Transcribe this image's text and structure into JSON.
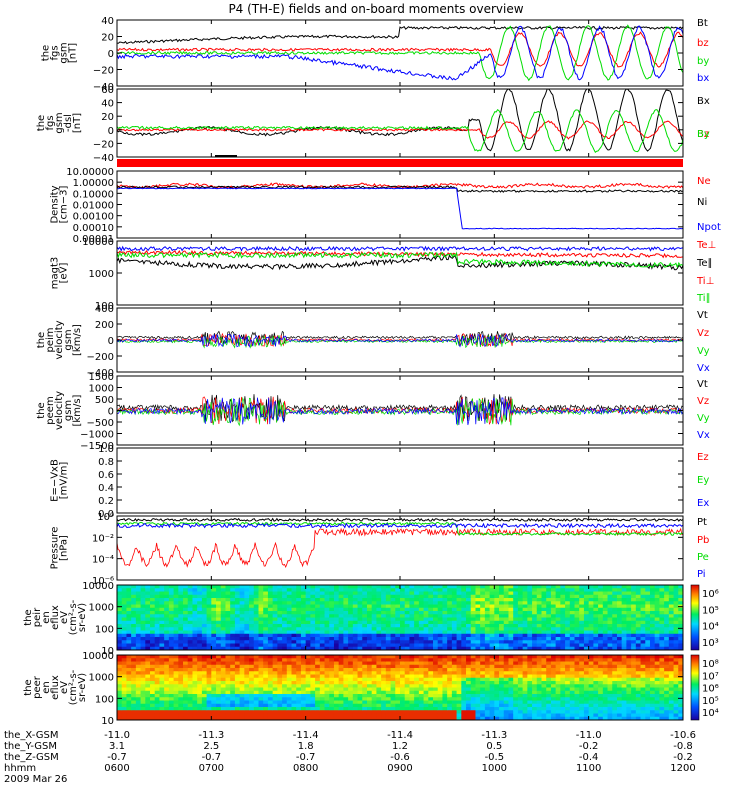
{
  "title": "P4 (TH-E) fields and on-board moments overview",
  "colors": {
    "black": "#000000",
    "red": "#ff0000",
    "green": "#00dd00",
    "blue": "#0000ff",
    "band": "#ff0000"
  },
  "footer": {
    "rows": [
      {
        "label": "the_X-GSM",
        "values": [
          "-11.0",
          "-11.3",
          "-11.4",
          "-11.4",
          "-11.3",
          "-11.0",
          "-10.6"
        ]
      },
      {
        "label": "the_Y-GSM",
        "values": [
          "3.1",
          "2.5",
          "1.8",
          "1.2",
          "0.5",
          "-0.2",
          "-0.8"
        ]
      },
      {
        "label": "the_Z-GSM",
        "values": [
          "-0.7",
          "-0.7",
          "-0.7",
          "-0.6",
          "-0.5",
          "-0.4",
          "-0.2"
        ]
      },
      {
        "label": "hhmm",
        "values": [
          "0600",
          "0700",
          "0800",
          "0900",
          "1000",
          "1100",
          "1200"
        ]
      }
    ],
    "date": "2009 Mar 26"
  },
  "chart_data": [
    {
      "type": "line",
      "id": "fgs_gsm",
      "ylabel": [
        "the",
        "fgs",
        "gsm",
        "[nT]"
      ],
      "ylim": [
        -40,
        40
      ],
      "ytick_labels": [
        "40",
        "20",
        "0",
        "−20",
        "−40"
      ],
      "series": [
        {
          "name": "Bt",
          "color": "black"
        },
        {
          "name": "bz",
          "color": "red"
        },
        {
          "name": "by",
          "color": "green"
        },
        {
          "name": "bx",
          "color": "blue"
        }
      ]
    },
    {
      "type": "line",
      "id": "fgs_dsl",
      "ylabel": [
        "the",
        "fgs",
        "gsm",
        "-dsl",
        "[nT]"
      ],
      "ylim": [
        -40,
        60
      ],
      "ytick_labels": [
        "60",
        "40",
        "20",
        "0",
        "−20",
        "−40"
      ],
      "series": [
        {
          "name": "Bx",
          "color": "black"
        },
        {
          "name": "Bz",
          "color": "red"
        },
        {
          "name": "By",
          "color": "green"
        }
      ]
    },
    {
      "type": "line",
      "id": "density",
      "ylabel": [
        "Density",
        "[cm−3]"
      ],
      "log": true,
      "ytick_labels": [
        "10.00000",
        "1.00000",
        "0.10000",
        "0.01000",
        "0.00100",
        "0.00010",
        "0.00001"
      ],
      "series": [
        {
          "name": "Ne",
          "color": "red"
        },
        {
          "name": "Ni",
          "color": "black"
        },
        {
          "name": "Npot",
          "color": "blue"
        }
      ]
    },
    {
      "type": "line",
      "id": "temperature",
      "ylabel": [
        "magt3",
        "[eV]"
      ],
      "log": true,
      "ytick_labels": [
        "10000",
        "1000",
        "100"
      ],
      "series": [
        {
          "name": "Te⊥",
          "color": "red"
        },
        {
          "name": "Te∥",
          "color": "black"
        },
        {
          "name": "Ti⊥",
          "color": "red"
        },
        {
          "name": "Ti∥",
          "color": "green"
        }
      ]
    },
    {
      "type": "line",
      "id": "peim_velocity",
      "ylabel": [
        "the",
        "peim",
        "velocity",
        "gsm",
        "[km/s]"
      ],
      "ylim": [
        -400,
        400
      ],
      "ytick_labels": [
        "400",
        "200",
        "0",
        "−200",
        "−400"
      ],
      "series": [
        {
          "name": "Vt",
          "color": "black"
        },
        {
          "name": "Vz",
          "color": "red"
        },
        {
          "name": "Vy",
          "color": "green"
        },
        {
          "name": "Vx",
          "color": "blue"
        }
      ]
    },
    {
      "type": "line",
      "id": "peem_velocity",
      "ylabel": [
        "the",
        "peem",
        "velocity",
        "gsm",
        "[km/s]"
      ],
      "ylim": [
        -1500,
        1500
      ],
      "ytick_labels": [
        "1500",
        "1000",
        "500",
        "0",
        "−500",
        "−1000",
        "−1500"
      ],
      "series": [
        {
          "name": "Vt",
          "color": "black"
        },
        {
          "name": "Vz",
          "color": "red"
        },
        {
          "name": "Vy",
          "color": "green"
        },
        {
          "name": "Vx",
          "color": "blue"
        }
      ]
    },
    {
      "type": "line",
      "id": "efield",
      "ylabel": [
        "E=−VxB",
        "[mV/m]"
      ],
      "ylim": [
        0,
        1
      ],
      "ytick_labels": [
        "1.0",
        "0.8",
        "0.6",
        "0.4",
        "0.2",
        "0.0"
      ],
      "series": [
        {
          "name": "Ez",
          "color": "red"
        },
        {
          "name": "Ey",
          "color": "green"
        },
        {
          "name": "Ex",
          "color": "blue"
        }
      ]
    },
    {
      "type": "line",
      "id": "pressure",
      "ylabel": [
        "Pressure",
        "[nPa]"
      ],
      "log": true,
      "ytick_labels": [
        "10⁰",
        "10⁻²",
        "10⁻⁴",
        "10⁻⁶"
      ],
      "series": [
        {
          "name": "Pt",
          "color": "black"
        },
        {
          "name": "Pb",
          "color": "red"
        },
        {
          "name": "Pe",
          "color": "green"
        },
        {
          "name": "Pi",
          "color": "blue"
        }
      ]
    },
    {
      "type": "heatmap",
      "id": "peir_spec",
      "ylabel": [
        "the",
        "peir",
        "en",
        "eflux",
        "eV",
        "(cm²-s-",
        "sr-eV)"
      ],
      "ytick_labels": [
        "10000",
        "1000",
        "100",
        "10"
      ],
      "colorbar_labels": [
        "10⁶",
        "10⁵",
        "10⁴",
        "10³"
      ]
    },
    {
      "type": "heatmap",
      "id": "peer_spec",
      "ylabel": [
        "the",
        "peer",
        "en",
        "eflux",
        "eV",
        "(cm²-s-",
        "sr-eV)"
      ],
      "ytick_labels": [
        "10000",
        "1000",
        "100",
        "10"
      ],
      "colorbar_labels": [
        "10⁸",
        "10⁷",
        "10⁶",
        "10⁵",
        "10⁴"
      ]
    }
  ]
}
